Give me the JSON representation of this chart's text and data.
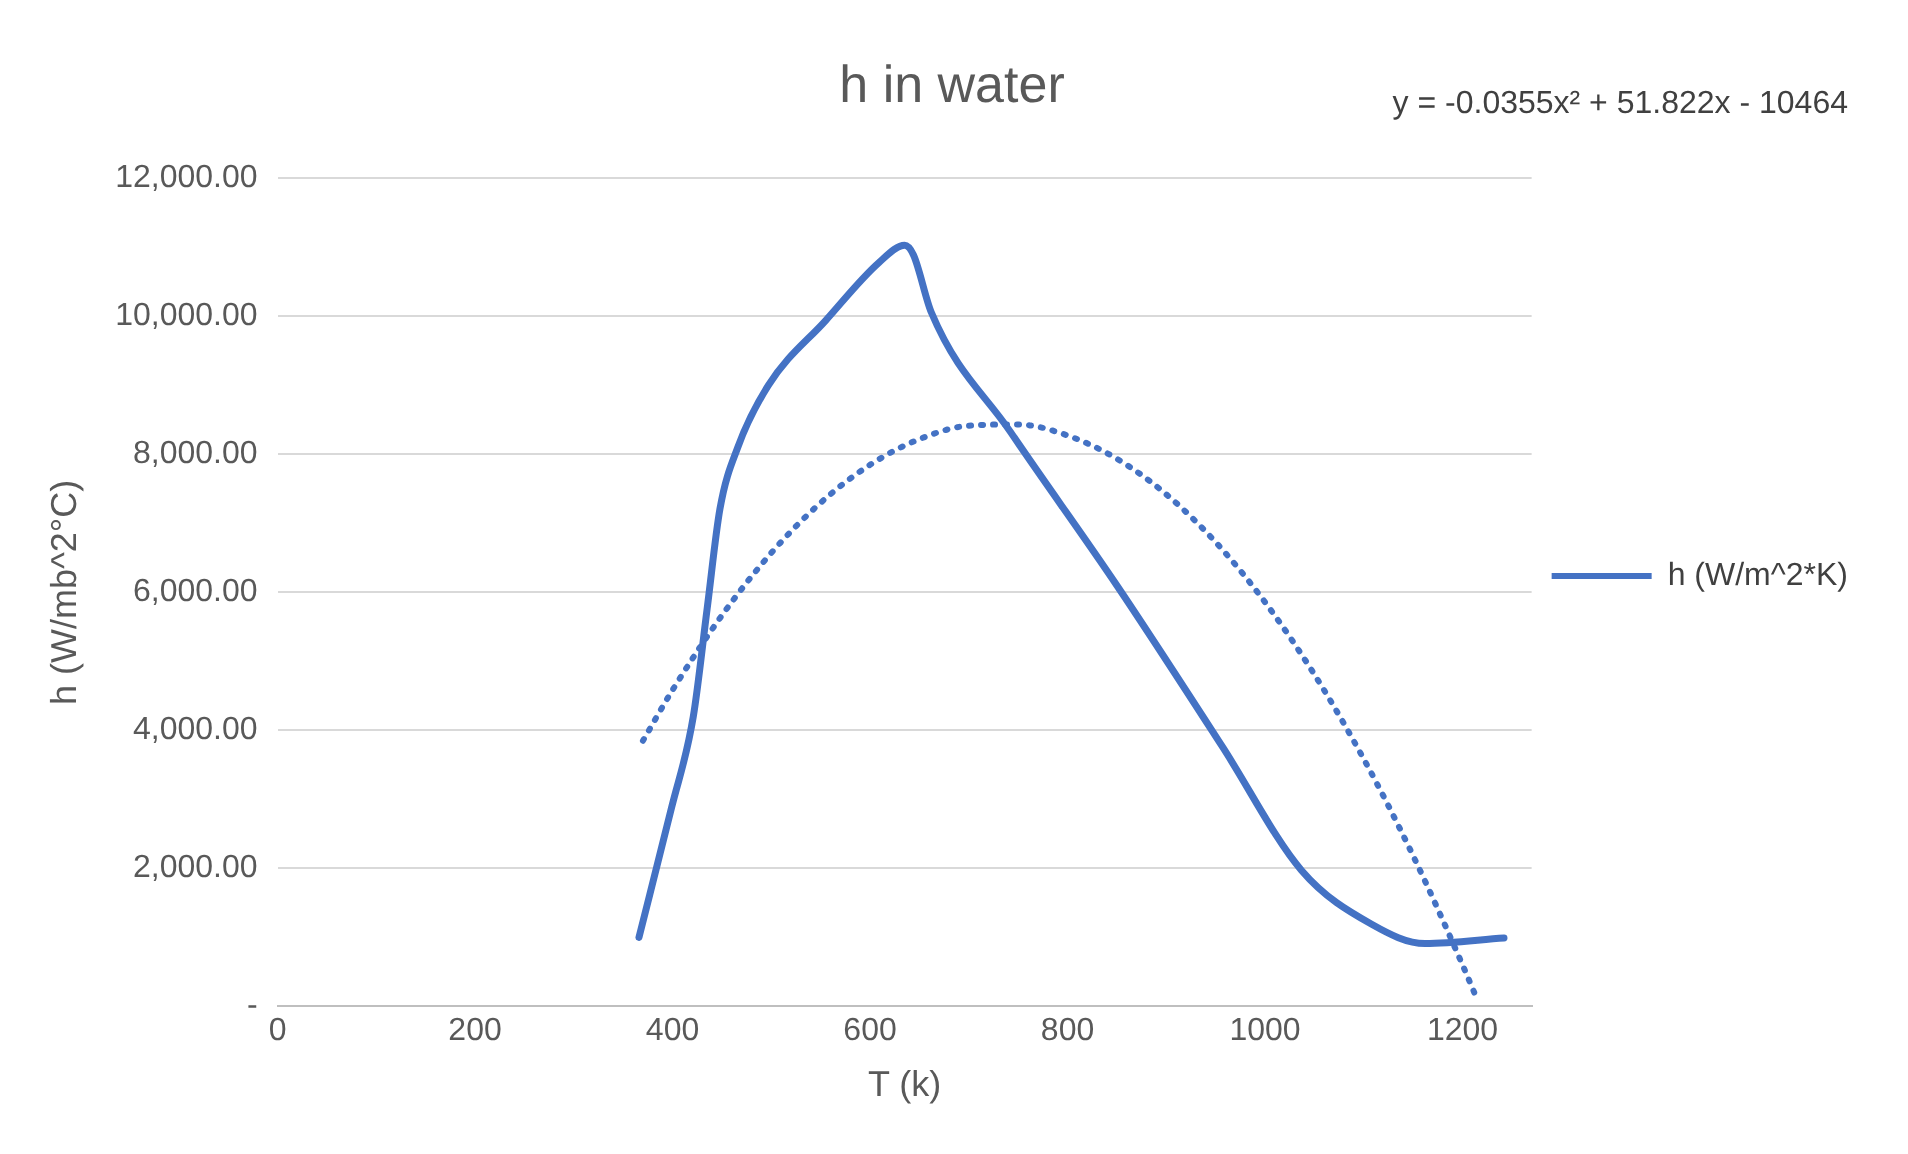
{
  "chart_data": {
    "type": "line",
    "title": "h in water",
    "xlabel": "T (k)",
    "ylabel": "h (W/mb^2°C)",
    "annotations": [
      "y = -0.0355x² + 51.822x - 10464"
    ],
    "xlim": [
      0,
      1270
    ],
    "xticks": [
      0,
      200,
      400,
      600,
      800,
      1000,
      1200
    ],
    "ylim": [
      0,
      12000
    ],
    "yticks": [
      {
        "value": 0,
        "label": "-"
      },
      {
        "value": 2000,
        "label": "2,000.00"
      },
      {
        "value": 4000,
        "label": "4,000.00"
      },
      {
        "value": 6000,
        "label": "6,000.00"
      },
      {
        "value": 8000,
        "label": "8,000.00"
      },
      {
        "value": 10000,
        "label": "10,000.00"
      },
      {
        "value": 12000,
        "label": "12,000.00"
      }
    ],
    "grid": "y",
    "legend": "right",
    "marker": "none",
    "series": [
      {
        "name": "h (W/m^2*K)",
        "color": "#4472c4",
        "line_style": "solid",
        "x": [
          366,
          399,
          421,
          435,
          448,
          466,
          497,
          555,
          609,
          635,
          644,
          662,
          742,
          850,
          957,
          1037,
          1108,
          1162,
          1242
        ],
        "values": [
          1000,
          2880,
          4200,
          5760,
          7210,
          8100,
          9000,
          9940,
          10780,
          11030,
          10890,
          10060,
          8330,
          6100,
          3760,
          1970,
          1190,
          910,
          990
        ]
      },
      {
        "type": "line",
        "color": "#4472c4",
        "line_style": "dotted",
        "x": [
          370,
          400,
          450,
          500,
          550,
          600,
          650,
          700,
          750,
          800,
          850,
          900,
          950,
          1000,
          1050,
          1100,
          1150,
          1200,
          1215
        ],
        "values": [
          3850,
          4585,
          5667,
          6572,
          7299,
          7849,
          8221,
          8416,
          8434,
          8274,
          7936,
          7421,
          6728,
          5858,
          4810,
          3585,
          2182,
          602,
          95
        ]
      }
    ]
  }
}
